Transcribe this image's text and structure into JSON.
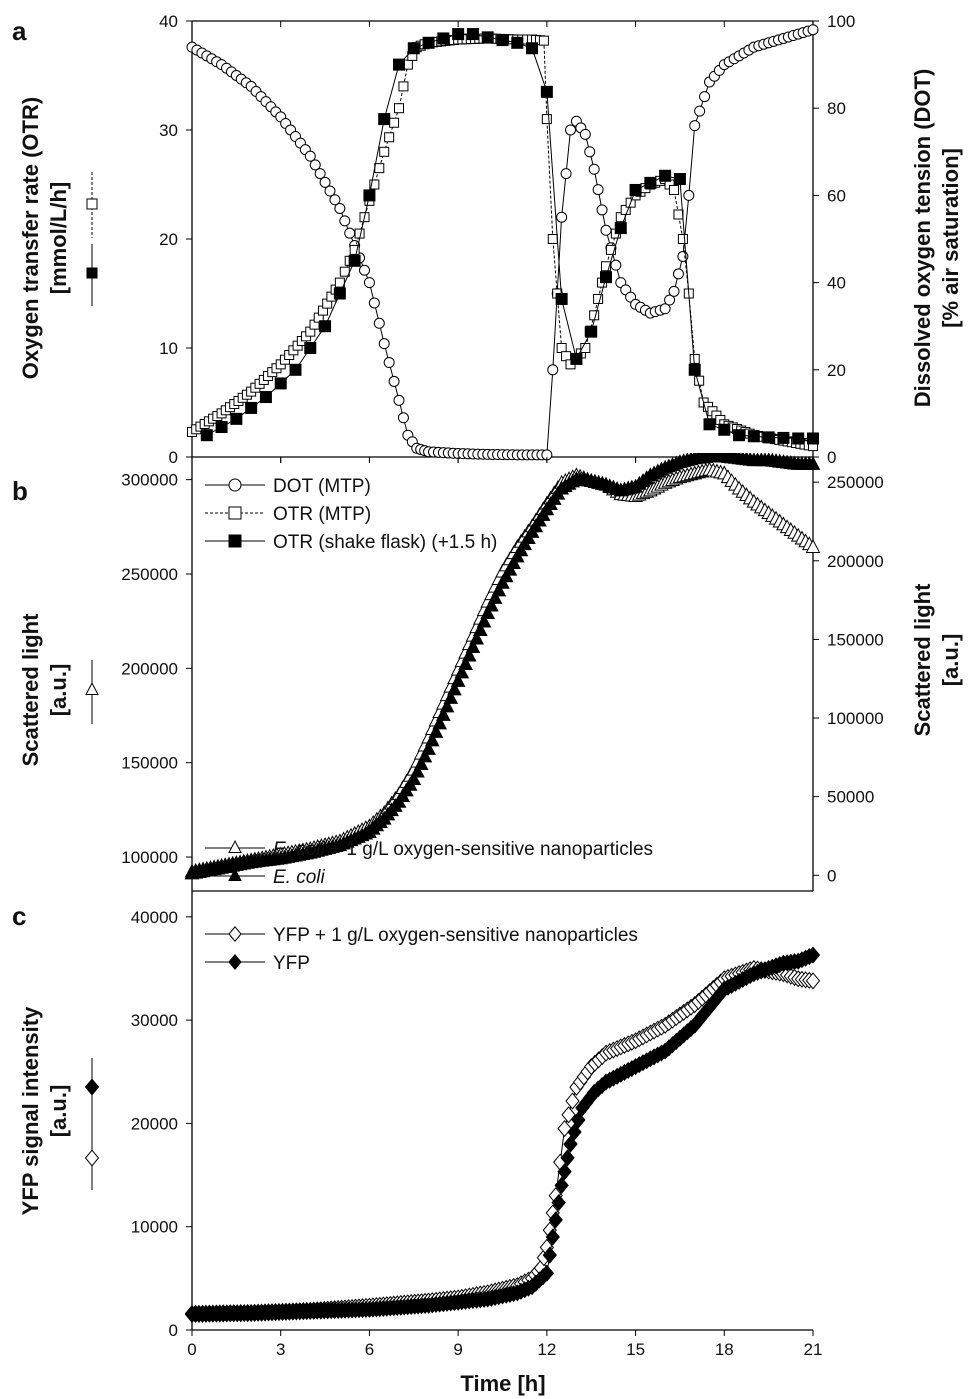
{
  "figure": {
    "x_label": "Time   [h]"
  },
  "chart_data": [
    {
      "panel": "a",
      "type": "line",
      "x_ticks": [
        0,
        3,
        6,
        9,
        12,
        15,
        18,
        21
      ],
      "xlim": [
        0,
        21
      ],
      "ylabel_left": [
        "Oxygen transfer rate (OTR)",
        "[mmol/L/h]"
      ],
      "ylabel_right": [
        "Dissolved oxygen tension (DOT)",
        "[% air saturation]"
      ],
      "ylim_left": [
        0,
        40
      ],
      "yticks_left": [
        0,
        10,
        20,
        30,
        40
      ],
      "ylim_right": [
        0,
        100
      ],
      "yticks_right": [
        0,
        20,
        40,
        60,
        80,
        100
      ],
      "series": [
        {
          "name": "DOT (MTP)",
          "axis": "right",
          "marker": "circle-open",
          "line": "solid",
          "x": [
            0,
            1,
            2,
            3,
            4,
            5,
            6,
            6.5,
            7,
            7.3,
            7.6,
            8,
            9,
            10,
            11,
            12,
            12.2,
            12.5,
            12.8,
            13,
            13.3,
            13.6,
            14,
            14.5,
            15,
            15.5,
            16,
            16.3,
            16.6,
            16.8,
            17,
            17.5,
            18,
            19,
            20,
            21
          ],
          "y": [
            94,
            90,
            85,
            78,
            69,
            57,
            40,
            26,
            13,
            5,
            2,
            1.2,
            0.8,
            0.6,
            0.5,
            0.5,
            20,
            55,
            75,
            77,
            74,
            66,
            52,
            40,
            35,
            33,
            34,
            38,
            46,
            60,
            76,
            86,
            90,
            94,
            96,
            98
          ]
        },
        {
          "name": "OTR (MTP)",
          "axis": "left",
          "marker": "square-open",
          "line": "dashed",
          "x": [
            0,
            1,
            2,
            3,
            4,
            5,
            5.5,
            6,
            6.5,
            7,
            7.3,
            7.6,
            8,
            9,
            10,
            11,
            11.5,
            11.9,
            12,
            12.2,
            12.5,
            12.8,
            13,
            13.3,
            13.6,
            14,
            14.5,
            15,
            15.5,
            16,
            16.3,
            16.6,
            16.8,
            17,
            17.3,
            17.6,
            18,
            19,
            20,
            21
          ],
          "y": [
            2.3,
            4,
            6,
            8.5,
            11.5,
            16,
            19,
            23.5,
            28,
            32,
            36,
            37.6,
            38,
            38.3,
            38.4,
            38.3,
            38.3,
            38.2,
            31,
            20,
            10,
            8.5,
            9,
            10,
            13,
            17.5,
            22,
            24,
            25,
            25.5,
            24.5,
            20,
            15,
            9,
            5,
            4.2,
            3,
            2,
            1.5,
            1
          ]
        },
        {
          "name": "OTR (shake flask) (+1.5 h)",
          "axis": "left",
          "marker": "square-filled",
          "line": "solid",
          "x": [
            0.5,
            1.5,
            2.5,
            3.5,
            4.5,
            5.5,
            6,
            6.5,
            7,
            7.5,
            8,
            9,
            9.5,
            10,
            11,
            11.5,
            12,
            12.5,
            13,
            13.5,
            14,
            14.5,
            15,
            16,
            16.5,
            17,
            17.5,
            18.5,
            19.5,
            20.5,
            21
          ],
          "y": [
            2,
            3.5,
            5.5,
            8,
            12,
            18,
            24,
            31,
            36,
            37.5,
            38,
            38.8,
            38.8,
            38.5,
            38,
            37.5,
            33.5,
            14.5,
            9,
            11.5,
            16.5,
            21,
            24.5,
            25.8,
            25.5,
            8,
            3,
            2,
            1.8,
            1.7,
            1.7
          ]
        }
      ]
    },
    {
      "panel": "b",
      "type": "line",
      "x_ticks": [
        0,
        3,
        6,
        9,
        12,
        15,
        18,
        21
      ],
      "xlim": [
        0,
        21
      ],
      "ylabel_left": [
        "Scattered light",
        "[a.u.]"
      ],
      "ylabel_right": [
        "Scattered light",
        "[a.u.]"
      ],
      "ylim_left": [
        82000,
        312000
      ],
      "yticks_left": [
        100000,
        150000,
        200000,
        250000,
        300000
      ],
      "ylim_right": [
        -10000,
        266000
      ],
      "yticks_right": [
        0,
        50000,
        100000,
        150000,
        200000,
        250000
      ],
      "series": [
        {
          "name_parts": [
            "E. coli",
            " + 1 g/L oxygen-sensitive nanoparticles"
          ],
          "axis": "left",
          "marker": "triangle-open",
          "x": [
            0,
            1,
            2,
            3,
            4,
            5,
            6,
            6.5,
            7,
            7.5,
            8,
            8.5,
            9,
            9.5,
            10,
            10.5,
            11,
            11.5,
            12,
            12.5,
            13,
            13.5,
            14,
            14.5,
            15,
            15.5,
            16,
            16.5,
            17,
            17.5,
            18,
            18.5,
            19,
            19.5,
            20,
            20.5,
            21
          ],
          "y": [
            92000,
            95000,
            98000,
            101000,
            104000,
            108000,
            116000,
            123000,
            133000,
            146000,
            163000,
            181000,
            199000,
            217000,
            235000,
            251000,
            264000,
            275000,
            287000,
            298000,
            302000,
            299000,
            297000,
            292000,
            291000,
            294000,
            298000,
            301000,
            303000,
            305000,
            303000,
            295000,
            288000,
            282000,
            276000,
            270000,
            264000
          ]
        },
        {
          "name_parts": [
            "E. coli",
            ""
          ],
          "axis": "left",
          "marker": "triangle-filled",
          "x": [
            0,
            1,
            2,
            3,
            4,
            5,
            6,
            6.5,
            7,
            7.5,
            8,
            8.5,
            9,
            9.5,
            10,
            10.5,
            11,
            11.5,
            12,
            12.5,
            13,
            13.5,
            14,
            14.5,
            15,
            15.5,
            16,
            16.5,
            17,
            17.5,
            18,
            18.5,
            19,
            19.5,
            20,
            20.5,
            21
          ],
          "y": [
            91000,
            94000,
            97000,
            99000,
            102000,
            106000,
            113000,
            120000,
            129000,
            141000,
            157000,
            175000,
            193000,
            211000,
            229000,
            245000,
            259000,
            272000,
            284000,
            295000,
            300000,
            299000,
            297000,
            294000,
            296000,
            302000,
            306000,
            309000,
            311000,
            312000,
            312000,
            311000,
            310000,
            310000,
            309000,
            308000,
            308000
          ]
        }
      ]
    },
    {
      "panel": "c",
      "type": "line",
      "x_ticks": [
        0,
        3,
        6,
        9,
        12,
        15,
        18,
        21
      ],
      "xlim": [
        0,
        21
      ],
      "ylabel_left": [
        "YFP signal intensity",
        "[a.u.]"
      ],
      "ylim_left": [
        0,
        42500
      ],
      "yticks_left": [
        0,
        10000,
        20000,
        30000,
        40000
      ],
      "series": [
        {
          "name": "YFP + 1 g/L oxygen-sensitive nanoparticles",
          "axis": "left",
          "marker": "diamond-open",
          "x": [
            0,
            2,
            4,
            6,
            8,
            9,
            10,
            11,
            11.5,
            11.8,
            12,
            12.3,
            12.6,
            13,
            13.5,
            14,
            15,
            16,
            17,
            18,
            19,
            20,
            20.5,
            21
          ],
          "y": [
            1600,
            1700,
            1900,
            2300,
            2800,
            3100,
            3600,
            4300,
            5000,
            6000,
            8000,
            13000,
            19500,
            23500,
            25500,
            26800,
            28000,
            29500,
            31500,
            34000,
            35000,
            34500,
            34000,
            33800
          ]
        },
        {
          "name": "YFP",
          "axis": "left",
          "marker": "diamond-filled",
          "x": [
            0,
            2,
            4,
            6,
            8,
            9,
            10,
            11,
            11.5,
            12,
            12.2,
            12.5,
            12.8,
            13.2,
            13.6,
            14,
            15,
            16,
            17,
            18,
            19,
            20,
            20.5,
            21
          ],
          "y": [
            1500,
            1600,
            1800,
            2000,
            2400,
            2700,
            3000,
            3600,
            4200,
            5500,
            9000,
            14000,
            18000,
            21500,
            23000,
            24000,
            25500,
            27000,
            29500,
            33000,
            34500,
            35500,
            35700,
            36300
          ]
        }
      ]
    }
  ]
}
